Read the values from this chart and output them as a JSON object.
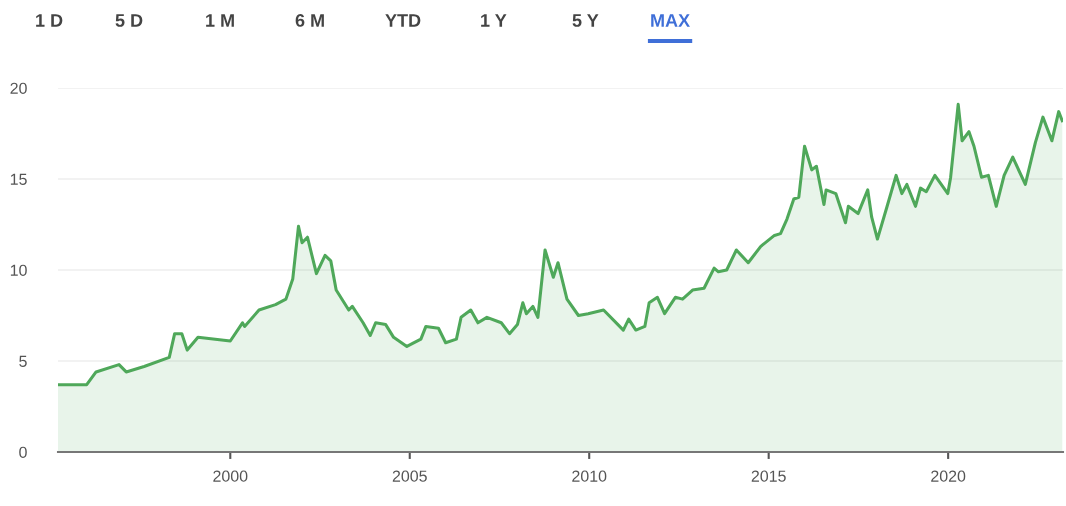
{
  "chart_data": {
    "type": "area",
    "annotations": [
      "1 D",
      "5 D",
      "1 M",
      "6 M",
      "YTD",
      "1 Y",
      "5 Y",
      "MAX"
    ],
    "series": [
      {
        "color": "#4fa85a",
        "x": [
          1995.2,
          1996.0,
          1996.26,
          1996.9,
          1997.1,
          1997.6,
          1998.3,
          1998.45,
          1998.65,
          1998.8,
          1999.1,
          2000.0,
          2000.34,
          2000.4,
          2000.8,
          2001.26,
          2001.55,
          2001.74,
          2001.9,
          2002.0,
          2002.15,
          2002.4,
          2002.64,
          2002.8,
          2002.95,
          2003.3,
          2003.4,
          2003.7,
          2003.9,
          2004.05,
          2004.33,
          2004.55,
          2004.92,
          2005.31,
          2005.45,
          2005.8,
          2006.0,
          2006.3,
          2006.43,
          2006.7,
          2006.9,
          2007.15,
          2007.55,
          2007.78,
          2008.0,
          2008.15,
          2008.25,
          2008.43,
          2008.57,
          2008.77,
          2009.0,
          2009.13,
          2009.38,
          2009.7,
          2009.97,
          2010.4,
          2010.8,
          2010.95,
          2011.1,
          2011.3,
          2011.55,
          2011.67,
          2011.9,
          2012.1,
          2012.4,
          2012.6,
          2012.88,
          2013.2,
          2013.48,
          2013.6,
          2013.83,
          2014.1,
          2014.43,
          2014.78,
          2015.16,
          2015.33,
          2015.51,
          2015.7,
          2015.84,
          2016.0,
          2016.2,
          2016.33,
          2016.54,
          2016.6,
          2016.87,
          2017.14,
          2017.22,
          2017.49,
          2017.76,
          2017.87,
          2018.03,
          2018.3,
          2018.55,
          2018.71,
          2018.85,
          2019.09,
          2019.23,
          2019.39,
          2019.63,
          2019.99,
          2020.07,
          2020.28,
          2020.39,
          2020.58,
          2020.72,
          2020.93,
          2021.12,
          2021.34,
          2021.56,
          2021.8,
          2022.15,
          2022.43,
          2022.64,
          2022.89,
          2023.08,
          2023.18
        ],
        "values": [
          3.7,
          3.7,
          4.4,
          4.8,
          4.4,
          4.7,
          5.2,
          6.5,
          6.5,
          5.6,
          6.3,
          6.1,
          7.1,
          6.9,
          7.8,
          8.1,
          8.4,
          9.5,
          12.4,
          11.5,
          11.8,
          9.8,
          10.8,
          10.5,
          8.9,
          7.8,
          8.0,
          7.1,
          6.4,
          7.1,
          7.0,
          6.3,
          5.8,
          6.2,
          6.9,
          6.8,
          6.0,
          6.2,
          7.4,
          7.8,
          7.1,
          7.4,
          7.1,
          6.5,
          7.0,
          8.2,
          7.6,
          8.0,
          7.4,
          11.1,
          9.6,
          10.4,
          8.4,
          7.5,
          7.6,
          7.8,
          7.0,
          6.7,
          7.3,
          6.7,
          6.9,
          8.2,
          8.5,
          7.6,
          8.5,
          8.4,
          8.9,
          9.0,
          10.1,
          9.9,
          10.0,
          11.1,
          10.4,
          11.3,
          11.9,
          12.0,
          12.8,
          13.9,
          14.0,
          16.8,
          15.5,
          15.7,
          13.6,
          14.4,
          14.2,
          12.6,
          13.5,
          13.1,
          14.4,
          12.9,
          11.7,
          13.5,
          15.2,
          14.2,
          14.7,
          13.5,
          14.5,
          14.3,
          15.2,
          14.2,
          15.1,
          19.1,
          17.1,
          17.6,
          16.8,
          15.1,
          15.2,
          13.5,
          15.2,
          16.2,
          14.7,
          17.0,
          18.4,
          17.1,
          18.7,
          18.2
        ]
      }
    ],
    "xlim": [
      1995.2,
      2023.2
    ],
    "xticks": [
      2000,
      2005,
      2010,
      2015,
      2020
    ],
    "ylim": [
      0,
      20
    ],
    "yticks": [
      0,
      5,
      10,
      15,
      20
    ],
    "grid": "y",
    "legend": false
  }
}
